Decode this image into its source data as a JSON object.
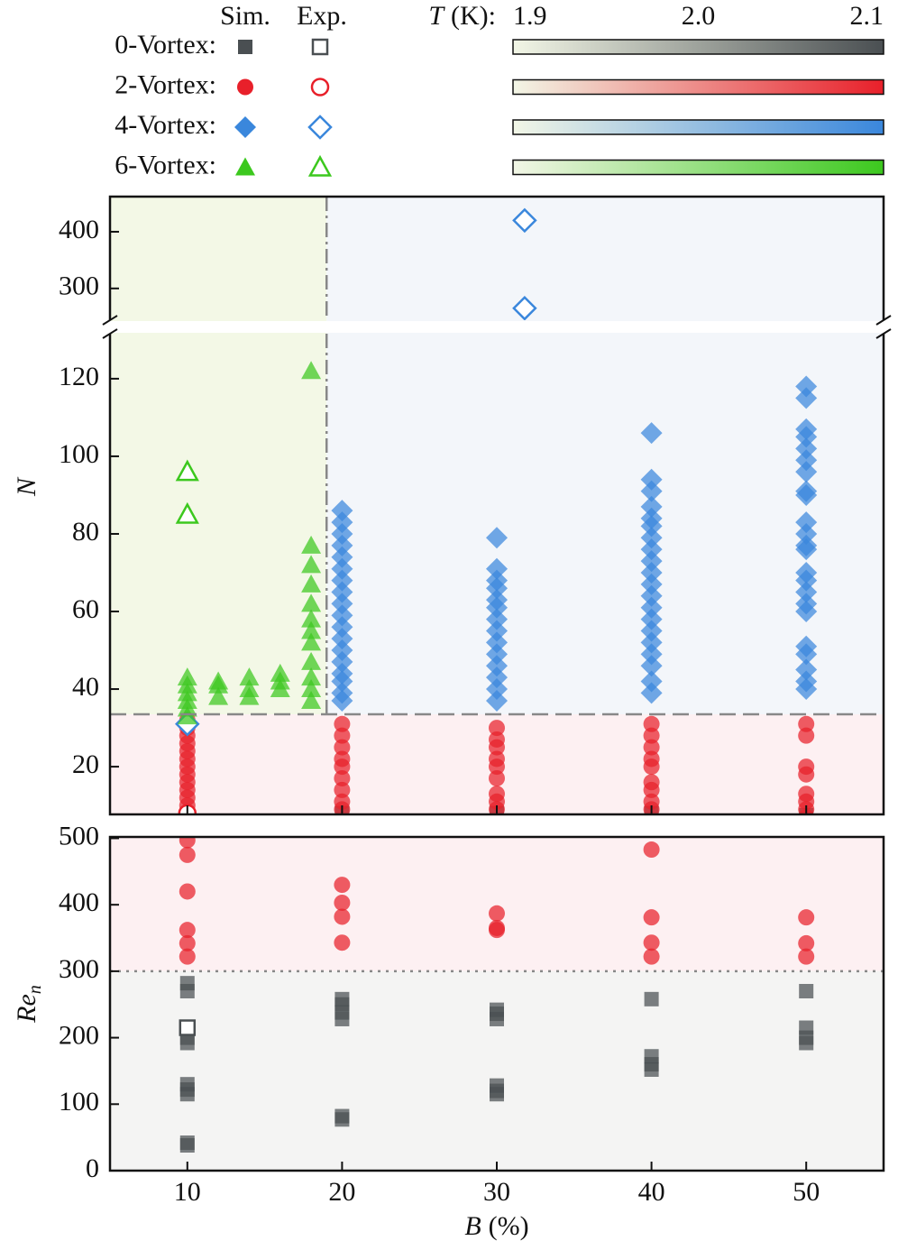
{
  "legend": {
    "columns": [
      "Sim.",
      "Exp."
    ],
    "colorbar": {
      "label_var": "T",
      "label_unit": "(K):",
      "clim": [
        1.9,
        2.1
      ],
      "ticks": [
        1.9,
        {
          "value": 2.0,
          "label": "2.0"
        },
        2.1
      ],
      "low_color": "#f2f6e6"
    }
  },
  "chart_data": [
    {
      "type": "scatter",
      "ylabel": "N",
      "ylim": [
        7.7,
        131.6
      ],
      "yticks": [
        20,
        40,
        60,
        80,
        100,
        120
      ],
      "ylim_upper": [
        244,
        462
      ],
      "yticks_upper": [
        300,
        400
      ],
      "threshold_y": 33.5,
      "threshold_x": 19,
      "series": [
        {
          "name": "0-Vortex:",
          "color": "#4a4f52",
          "marker": "square",
          "sim": {
            "x": [
              20,
              30,
              40,
              50
            ],
            "values": [
              8,
              8,
              8,
              7.5
            ]
          },
          "exp": {
            "x": [],
            "values": []
          }
        },
        {
          "name": "2-Vortex:",
          "color": "#e8202a",
          "marker": "circle",
          "sim": {
            "x": [
              10,
              10,
              10,
              10,
              10,
              10,
              10,
              10,
              10,
              10,
              10,
              10,
              10,
              20,
              20,
              20,
              20,
              20,
              20,
              20,
              20,
              20,
              30,
              30,
              30,
              30,
              30,
              30,
              30,
              30,
              30,
              40,
              40,
              40,
              40,
              40,
              40,
              40,
              40,
              40,
              50,
              50,
              50,
              50,
              50,
              50,
              50,
              50
            ],
            "values": [
              8,
              10,
              12,
              14,
              16,
              18,
              20,
              22,
              24,
              26,
              28,
              30,
              32,
              9,
              11,
              14,
              17,
              20,
              22,
              25,
              28,
              31,
              9,
              11,
              13,
              17,
              20,
              22,
              25,
              27,
              30,
              9,
              11,
              14,
              16,
              20,
              22,
              25,
              28,
              31,
              7,
              9,
              11,
              13,
              18,
              20,
              28,
              31
            ]
          },
          "exp": {
            "x": [
              10
            ],
            "values": [
              8
            ]
          }
        },
        {
          "name": "4-Vortex:",
          "color": "#3a87dc",
          "marker": "diamond",
          "sim": {
            "x": [
              20,
              20,
              20,
              20,
              20,
              20,
              20,
              20,
              20,
              20,
              20,
              20,
              20,
              20,
              20,
              20,
              20,
              20,
              30,
              30,
              30,
              30,
              30,
              30,
              30,
              30,
              30,
              30,
              30,
              30,
              30,
              30,
              40,
              40,
              40,
              40,
              40,
              40,
              40,
              40,
              40,
              40,
              40,
              40,
              40,
              40,
              40,
              40,
              40,
              40,
              40,
              40,
              50,
              50,
              50,
              50,
              50,
              50,
              50,
              50,
              50,
              50,
              50,
              50,
              50,
              50,
              50,
              50,
              50,
              50,
              50,
              50,
              50,
              50,
              50
            ],
            "values": [
              37,
              39,
              42,
              44,
              47,
              50,
              53,
              56,
              59,
              62,
              65,
              68,
              71,
              74,
              77,
              80,
              83,
              86,
              37,
              40,
              43,
              46,
              49,
              52,
              55,
              58,
              61,
              63,
              66,
              68,
              71,
              79,
              39,
              42,
              46,
              49,
              52,
              55,
              58,
              61,
              64,
              67,
              70,
              73,
              76,
              79,
              82,
              84,
              87,
              91,
              94,
              106,
              40,
              42,
              45,
              49,
              51,
              60,
              62,
              65,
              68,
              70,
              76,
              77,
              80,
              83,
              90,
              91,
              96,
              99,
              102,
              105,
              107,
              115,
              118
            ]
          },
          "exp": {
            "x": [
              10,
              31.8,
              31.8
            ],
            "values": [
              31,
              265,
              420
            ]
          }
        },
        {
          "name": "6-Vortex:",
          "color": "#3cc81e",
          "marker": "triangle",
          "sim": {
            "x": [
              10,
              10,
              10,
              10,
              10,
              10,
              12,
              12,
              12,
              14,
              14,
              14,
              16,
              16,
              16,
              18,
              18,
              18,
              18,
              18,
              18,
              18,
              18,
              18,
              18,
              18,
              18
            ],
            "values": [
              33,
              35,
              37,
              39,
              41,
              43,
              38,
              41,
              42,
              38,
              40,
              43,
              40,
              42,
              44,
              37,
              40,
              43,
              47,
              52,
              55,
              58,
              62,
              67,
              72,
              77,
              122
            ]
          },
          "exp": {
            "x": [
              10,
              10
            ],
            "values": [
              85,
              96
            ]
          }
        }
      ]
    },
    {
      "type": "scatter",
      "ylabel": "Re",
      "ylabel_sub": "n",
      "xlabel_var": "B",
      "xlabel_unit": "(%)",
      "xlim": [
        5,
        55
      ],
      "xticks": [
        10,
        20,
        30,
        40,
        50
      ],
      "ylim": [
        0,
        502
      ],
      "yticks": [
        0,
        100,
        200,
        300,
        400,
        500
      ],
      "threshold_y": 300,
      "series": [
        {
          "color": "#4a4f52",
          "marker": "square",
          "sim": {
            "x": [
              10,
              10,
              10,
              10,
              10,
              10,
              10,
              10,
              10,
              20,
              20,
              20,
              20,
              20,
              20,
              30,
              30,
              30,
              30,
              30,
              30,
              40,
              40,
              40,
              40,
              50,
              50,
              50,
              50
            ],
            "values": [
              38,
              42,
              115,
              122,
              130,
              192,
              200,
              270,
              282,
              77,
              82,
              228,
              238,
              250,
              258,
              115,
              120,
              128,
              228,
              236,
              242,
              152,
              160,
              172,
              258,
              192,
              200,
              215,
              270
            ]
          },
          "exp": {
            "x": [
              10
            ],
            "values": [
              215
            ]
          }
        },
        {
          "color": "#e8202a",
          "marker": "circle",
          "sim": {
            "x": [
              10,
              10,
              10,
              10,
              10,
              10,
              20,
              20,
              20,
              20,
              30,
              30,
              30,
              40,
              40,
              40,
              40,
              50,
              50,
              50
            ],
            "values": [
              322,
              342,
              362,
              420,
              475,
              497,
              343,
              382,
              403,
              430,
              362,
              365,
              387,
              322,
              343,
              381,
              483,
              322,
              342,
              381
            ]
          },
          "exp": {
            "x": [],
            "values": []
          }
        }
      ]
    }
  ]
}
